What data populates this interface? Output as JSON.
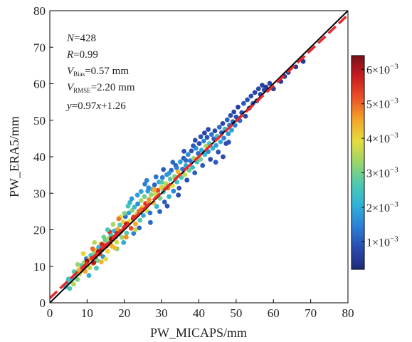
{
  "chart_data": {
    "type": "scatter",
    "xlabel": "PW_MICAPS/mm",
    "ylabel": "PW_ERA5/mm",
    "xlim": [
      0,
      80
    ],
    "ylim": [
      0,
      80
    ],
    "x_ticks": [
      "0",
      "10",
      "20",
      "30",
      "40",
      "50",
      "60",
      "70",
      "80"
    ],
    "y_ticks": [
      "0",
      "10",
      "20",
      "30",
      "40",
      "50",
      "60",
      "70",
      "80"
    ],
    "grid": false,
    "stats": {
      "n": {
        "sym": "N",
        "rest": "=428"
      },
      "r": {
        "sym": "R",
        "rest": "=0.99"
      },
      "bias": {
        "sym": "V",
        "sub": "Bias",
        "rest": "=0.57 mm"
      },
      "rmse": {
        "sym": "V",
        "sub": "RMSE",
        "rest": "=2.20 mm"
      },
      "fit": {
        "y": "y",
        "eq1": "=0.97",
        "x": "x",
        "eq2": "+1.26"
      }
    },
    "lines": [
      {
        "role": "1:1 reference",
        "slope": 1,
        "intercept": 0,
        "color": "#000000",
        "style": "solid"
      },
      {
        "role": "linear fit",
        "slope": 0.97,
        "intercept": 1.26,
        "color": "#e8282a",
        "style": "dashed"
      }
    ],
    "colorbar": {
      "min": 0.0002,
      "max": 0.0064,
      "ticks": [
        {
          "value": 0.001,
          "base": "1×10",
          "exp": "−3"
        },
        {
          "value": 0.002,
          "base": "2×10",
          "exp": "−3"
        },
        {
          "value": 0.003,
          "base": "3×10",
          "exp": "−3"
        },
        {
          "value": 0.004,
          "base": "4×10",
          "exp": "−3"
        },
        {
          "value": 0.005,
          "base": "5×10",
          "exp": "−3"
        },
        {
          "value": 0.006,
          "base": "6×10",
          "exp": "−3"
        }
      ],
      "colormap": [
        "#1f2a7a",
        "#2a4bb0",
        "#2b7fd6",
        "#2fb2d8",
        "#4ec9b0",
        "#9bd56a",
        "#e6dc3c",
        "#f5a52b",
        "#ea5426",
        "#c91d22",
        "#7a1016"
      ]
    },
    "points": [
      [
        4.2,
        4.4,
        0.0022
      ],
      [
        4.8,
        5.6,
        0.0018
      ],
      [
        5.3,
        3.9,
        0.0026
      ],
      [
        5.6,
        5.9,
        0.003
      ],
      [
        6.0,
        6.6,
        0.0021
      ],
      [
        6.4,
        5.1,
        0.0035
      ],
      [
        6.8,
        7.6,
        0.0024
      ],
      [
        7.1,
        8.3,
        0.0019
      ],
      [
        7.4,
        6.4,
        0.0031
      ],
      [
        7.8,
        9.1,
        0.0042
      ],
      [
        8.0,
        7.9,
        0.0038
      ],
      [
        8.3,
        8.7,
        0.0046
      ],
      [
        8.6,
        10.2,
        0.0027
      ],
      [
        8.9,
        9.3,
        0.0052
      ],
      [
        9.2,
        11.0,
        0.0033
      ],
      [
        9.5,
        8.6,
        0.0045
      ],
      [
        9.8,
        12.1,
        0.0014
      ],
      [
        10.1,
        10.6,
        0.0049
      ],
      [
        10.4,
        11.8,
        0.0041
      ],
      [
        10.7,
        9.6,
        0.0036
      ],
      [
        11.0,
        13.0,
        0.0026
      ],
      [
        11.3,
        12.2,
        0.0055
      ],
      [
        11.6,
        10.8,
        0.0047
      ],
      [
        11.9,
        13.9,
        0.0032
      ],
      [
        12.2,
        12.6,
        0.0058
      ],
      [
        12.5,
        14.3,
        0.0043
      ],
      [
        12.8,
        11.6,
        0.003
      ],
      [
        13.1,
        15.2,
        0.0022
      ],
      [
        13.4,
        13.4,
        0.0053
      ],
      [
        13.7,
        16.2,
        0.0037
      ],
      [
        14.0,
        14.6,
        0.0061
      ],
      [
        14.3,
        12.6,
        0.0017
      ],
      [
        14.6,
        15.8,
        0.0048
      ],
      [
        14.9,
        17.1,
        0.0029
      ],
      [
        15.2,
        15.6,
        0.0056
      ],
      [
        15.5,
        14.1,
        0.004
      ],
      [
        15.8,
        17.6,
        0.0034
      ],
      [
        16.1,
        16.3,
        0.0059
      ],
      [
        16.4,
        18.6,
        0.0025
      ],
      [
        16.7,
        15.5,
        0.0044
      ],
      [
        17.0,
        17.8,
        0.0051
      ],
      [
        17.3,
        19.7,
        0.0021
      ],
      [
        17.6,
        18.1,
        0.0062
      ],
      [
        17.9,
        16.6,
        0.0037
      ],
      [
        18.2,
        20.1,
        0.0046
      ],
      [
        18.5,
        18.9,
        0.0015
      ],
      [
        18.8,
        21.3,
        0.0028
      ],
      [
        19.1,
        19.6,
        0.0054
      ],
      [
        19.4,
        17.9,
        0.0033
      ],
      [
        19.7,
        22.1,
        0.0041
      ],
      [
        20.0,
        20.6,
        0.0057
      ],
      [
        20.3,
        23.6,
        0.0012
      ],
      [
        20.6,
        19.1,
        0.0026
      ],
      [
        20.9,
        21.9,
        0.0048
      ],
      [
        21.2,
        24.6,
        0.0019
      ],
      [
        21.5,
        22.4,
        0.0039
      ],
      [
        21.8,
        20.4,
        0.0052
      ],
      [
        22.1,
        25.3,
        0.0031
      ],
      [
        22.4,
        23.1,
        0.006
      ],
      [
        22.7,
        26.2,
        0.0023
      ],
      [
        23.0,
        21.6,
        0.0045
      ],
      [
        23.3,
        24.3,
        0.0036
      ],
      [
        23.6,
        27.1,
        0.0016
      ],
      [
        23.9,
        25.1,
        0.005
      ],
      [
        24.2,
        22.6,
        0.0027
      ],
      [
        24.5,
        28.0,
        0.0034
      ],
      [
        24.8,
        26.1,
        0.0042
      ],
      [
        25.1,
        23.9,
        0.002
      ],
      [
        25.4,
        29.1,
        0.0029
      ],
      [
        25.7,
        27.2,
        0.0055
      ],
      [
        26.0,
        25.3,
        0.0038
      ],
      [
        26.3,
        30.6,
        0.0018
      ],
      [
        26.6,
        28.3,
        0.0047
      ],
      [
        26.9,
        24.6,
        0.0013
      ],
      [
        27.2,
        29.6,
        0.0032
      ],
      [
        27.5,
        31.1,
        0.0024
      ],
      [
        27.8,
        27.4,
        0.0044
      ],
      [
        28.1,
        32.3,
        0.0011
      ],
      [
        28.4,
        29.9,
        0.0037
      ],
      [
        28.7,
        26.4,
        0.0022
      ],
      [
        29.0,
        30.8,
        0.0053
      ],
      [
        29.3,
        33.1,
        0.0019
      ],
      [
        29.6,
        28.6,
        0.003
      ],
      [
        29.9,
        31.6,
        0.0041
      ],
      [
        30.2,
        34.3,
        0.0014
      ],
      [
        30.5,
        30.4,
        0.0026
      ],
      [
        30.8,
        27.6,
        0.001
      ],
      [
        31.1,
        32.6,
        0.0035
      ],
      [
        31.4,
        35.1,
        0.0017
      ],
      [
        31.7,
        31.4,
        0.0048
      ],
      [
        32.0,
        29.1,
        0.0021
      ],
      [
        32.3,
        33.9,
        0.0028
      ],
      [
        32.6,
        36.3,
        0.0012
      ],
      [
        32.9,
        32.1,
        0.0039
      ],
      [
        33.2,
        30.6,
        0.0015
      ],
      [
        33.5,
        34.6,
        0.0031
      ],
      [
        33.8,
        37.6,
        0.0011
      ],
      [
        34.1,
        33.1,
        0.0024
      ],
      [
        34.4,
        35.9,
        0.0043
      ],
      [
        34.7,
        31.4,
        0.0009
      ],
      [
        35.0,
        38.6,
        0.0018
      ],
      [
        35.3,
        34.3,
        0.0027
      ],
      [
        35.6,
        36.6,
        0.0013
      ],
      [
        35.9,
        39.6,
        0.001
      ],
      [
        36.2,
        35.1,
        0.0036
      ],
      [
        36.5,
        37.6,
        0.002
      ],
      [
        36.8,
        33.6,
        0.0008
      ],
      [
        37.1,
        40.6,
        0.0016
      ],
      [
        37.4,
        36.3,
        0.0029
      ],
      [
        37.7,
        38.9,
        0.0014
      ],
      [
        38.0,
        41.6,
        0.0009
      ],
      [
        38.3,
        37.1,
        0.0023
      ],
      [
        38.6,
        39.6,
        0.0033
      ],
      [
        38.9,
        35.6,
        0.0011
      ],
      [
        39.2,
        42.3,
        0.0017
      ],
      [
        39.5,
        38.6,
        0.0025
      ],
      [
        39.8,
        40.9,
        0.0012
      ],
      [
        40.1,
        43.6,
        0.0008
      ],
      [
        40.4,
        39.3,
        0.003
      ],
      [
        40.7,
        41.8,
        0.0019
      ],
      [
        41.0,
        37.6,
        0.001
      ],
      [
        41.3,
        44.3,
        0.0015
      ],
      [
        41.6,
        40.6,
        0.0022
      ],
      [
        41.9,
        42.9,
        0.0034
      ],
      [
        42.2,
        45.3,
        0.0009
      ],
      [
        42.5,
        41.4,
        0.0016
      ],
      [
        42.8,
        43.6,
        0.0026
      ],
      [
        43.1,
        39.3,
        0.0008
      ],
      [
        43.4,
        46.1,
        0.0013
      ],
      [
        43.7,
        42.3,
        0.0021
      ],
      [
        44.0,
        44.9,
        0.0011
      ],
      [
        44.3,
        47.1,
        0.0007
      ],
      [
        44.6,
        43.1,
        0.0018
      ],
      [
        44.9,
        45.6,
        0.0024
      ],
      [
        45.2,
        41.3,
        0.0009
      ],
      [
        45.5,
        48.1,
        0.0012
      ],
      [
        45.8,
        44.1,
        0.002
      ],
      [
        46.1,
        46.6,
        0.001
      ],
      [
        46.4,
        49.1,
        0.0007
      ],
      [
        46.7,
        45.1,
        0.0015
      ],
      [
        47.0,
        47.6,
        0.0022
      ],
      [
        47.3,
        43.6,
        0.0008
      ],
      [
        47.6,
        50.1,
        0.0011
      ],
      [
        47.9,
        46.3,
        0.0017
      ],
      [
        48.2,
        48.6,
        0.0013
      ],
      [
        48.5,
        51.3,
        0.0008
      ],
      [
        48.8,
        47.3,
        0.0019
      ],
      [
        49.1,
        49.6,
        0.001
      ],
      [
        49.4,
        52.3,
        0.0007
      ],
      [
        49.7,
        48.6,
        0.0014
      ],
      [
        50.0,
        50.9,
        0.0009
      ],
      [
        50.5,
        53.6,
        0.0006
      ],
      [
        51.0,
        49.9,
        0.0012
      ],
      [
        51.5,
        52.1,
        0.0008
      ],
      [
        52.0,
        54.6,
        0.001
      ],
      [
        52.5,
        51.1,
        0.0007
      ],
      [
        53.0,
        55.6,
        0.0009
      ],
      [
        53.5,
        53.3,
        0.0006
      ],
      [
        54.0,
        56.6,
        0.0008
      ],
      [
        54.5,
        54.6,
        0.0011
      ],
      [
        55.0,
        57.6,
        0.0007
      ],
      [
        55.5,
        55.3,
        0.0006
      ],
      [
        56.0,
        58.6,
        0.0008
      ],
      [
        56.5,
        57.1,
        0.0007
      ],
      [
        57.0,
        59.6,
        0.0006
      ],
      [
        57.5,
        58.3,
        0.0008
      ],
      [
        58.0,
        59.1,
        0.0005
      ],
      [
        59.0,
        60.1,
        0.0007
      ],
      [
        60.0,
        58.6,
        0.0006
      ],
      [
        62.0,
        60.6,
        0.0005
      ],
      [
        64.0,
        63.1,
        0.0006
      ],
      [
        66.0,
        64.6,
        0.0005
      ],
      [
        68.0,
        66.1,
        0.0005
      ],
      [
        63.0,
        62.0,
        0.0006
      ],
      [
        11.5,
        14.8,
        0.005
      ],
      [
        13.8,
        11.2,
        0.0044
      ],
      [
        16.0,
        19.5,
        0.0055
      ],
      [
        18.0,
        14.8,
        0.003
      ],
      [
        19.8,
        16.5,
        0.002
      ],
      [
        22.5,
        19.0,
        0.0015
      ],
      [
        24.0,
        20.5,
        0.0011
      ],
      [
        26.5,
        31.5,
        0.0016
      ],
      [
        28.5,
        34.5,
        0.0013
      ],
      [
        30.5,
        36.5,
        0.001
      ],
      [
        33.0,
        38.5,
        0.0012
      ],
      [
        36.0,
        41.5,
        0.0009
      ],
      [
        39.0,
        44.5,
        0.0008
      ],
      [
        41.5,
        46.5,
        0.0007
      ],
      [
        44.5,
        38.5,
        0.001
      ],
      [
        46.5,
        40.0,
        0.0008
      ],
      [
        48.0,
        44.0,
        0.0009
      ],
      [
        21.0,
        26.5,
        0.0025
      ],
      [
        23.5,
        29.5,
        0.0018
      ],
      [
        25.5,
        32.5,
        0.0014
      ],
      [
        27.0,
        22.0,
        0.0012
      ],
      [
        29.5,
        25.0,
        0.0011
      ],
      [
        31.5,
        26.5,
        0.0009
      ],
      [
        34.5,
        29.5,
        0.0008
      ],
      [
        9.0,
        13.5,
        0.004
      ],
      [
        7.5,
        10.5,
        0.0033
      ],
      [
        6.5,
        8.5,
        0.0028
      ],
      [
        5.0,
        6.5,
        0.0024
      ],
      [
        12.0,
        16.5,
        0.0035
      ],
      [
        14.5,
        18.0,
        0.0029
      ],
      [
        10.5,
        7.5,
        0.0021
      ],
      [
        12.5,
        9.5,
        0.0027
      ],
      [
        15.0,
        12.0,
        0.0038
      ],
      [
        17.5,
        15.0,
        0.0043
      ],
      [
        20.5,
        18.0,
        0.0047
      ],
      [
        23.0,
        20.0,
        0.0036
      ],
      [
        19.0,
        23.5,
        0.0039
      ],
      [
        21.5,
        27.5,
        0.0022
      ],
      [
        24.5,
        30.5,
        0.0019
      ],
      [
        26.0,
        33.5,
        0.0015
      ],
      [
        28.0,
        31.0,
        0.0045
      ],
      [
        30.0,
        33.0,
        0.0027
      ],
      [
        32.0,
        35.5,
        0.0018
      ],
      [
        34.0,
        37.0,
        0.0014
      ],
      [
        36.5,
        39.0,
        0.0012
      ],
      [
        38.5,
        43.0,
        0.001
      ],
      [
        40.5,
        45.5,
        0.0009
      ],
      [
        42.5,
        47.5,
        0.0008
      ],
      [
        15.5,
        20.0,
        0.0026
      ],
      [
        17.0,
        21.5,
        0.0034
      ],
      [
        18.5,
        23.0,
        0.0049
      ],
      [
        20.0,
        24.5,
        0.0031
      ],
      [
        22.0,
        28.5,
        0.0017
      ],
      [
        13.0,
        14.0,
        0.0061
      ],
      [
        14.0,
        16.0,
        0.0057
      ],
      [
        16.5,
        17.5,
        0.0063
      ],
      [
        18.0,
        19.0,
        0.0058
      ],
      [
        20.5,
        21.5,
        0.006
      ],
      [
        22.5,
        23.5,
        0.0054
      ],
      [
        24.5,
        25.5,
        0.005
      ],
      [
        26.5,
        27.5,
        0.0046
      ],
      [
        28.5,
        29.0,
        0.004
      ],
      [
        30.5,
        31.5,
        0.0035
      ],
      [
        10.0,
        11.5,
        0.0062
      ],
      [
        11.8,
        11.0,
        0.0059
      ],
      [
        9.3,
        9.8,
        0.0056
      ]
    ]
  }
}
